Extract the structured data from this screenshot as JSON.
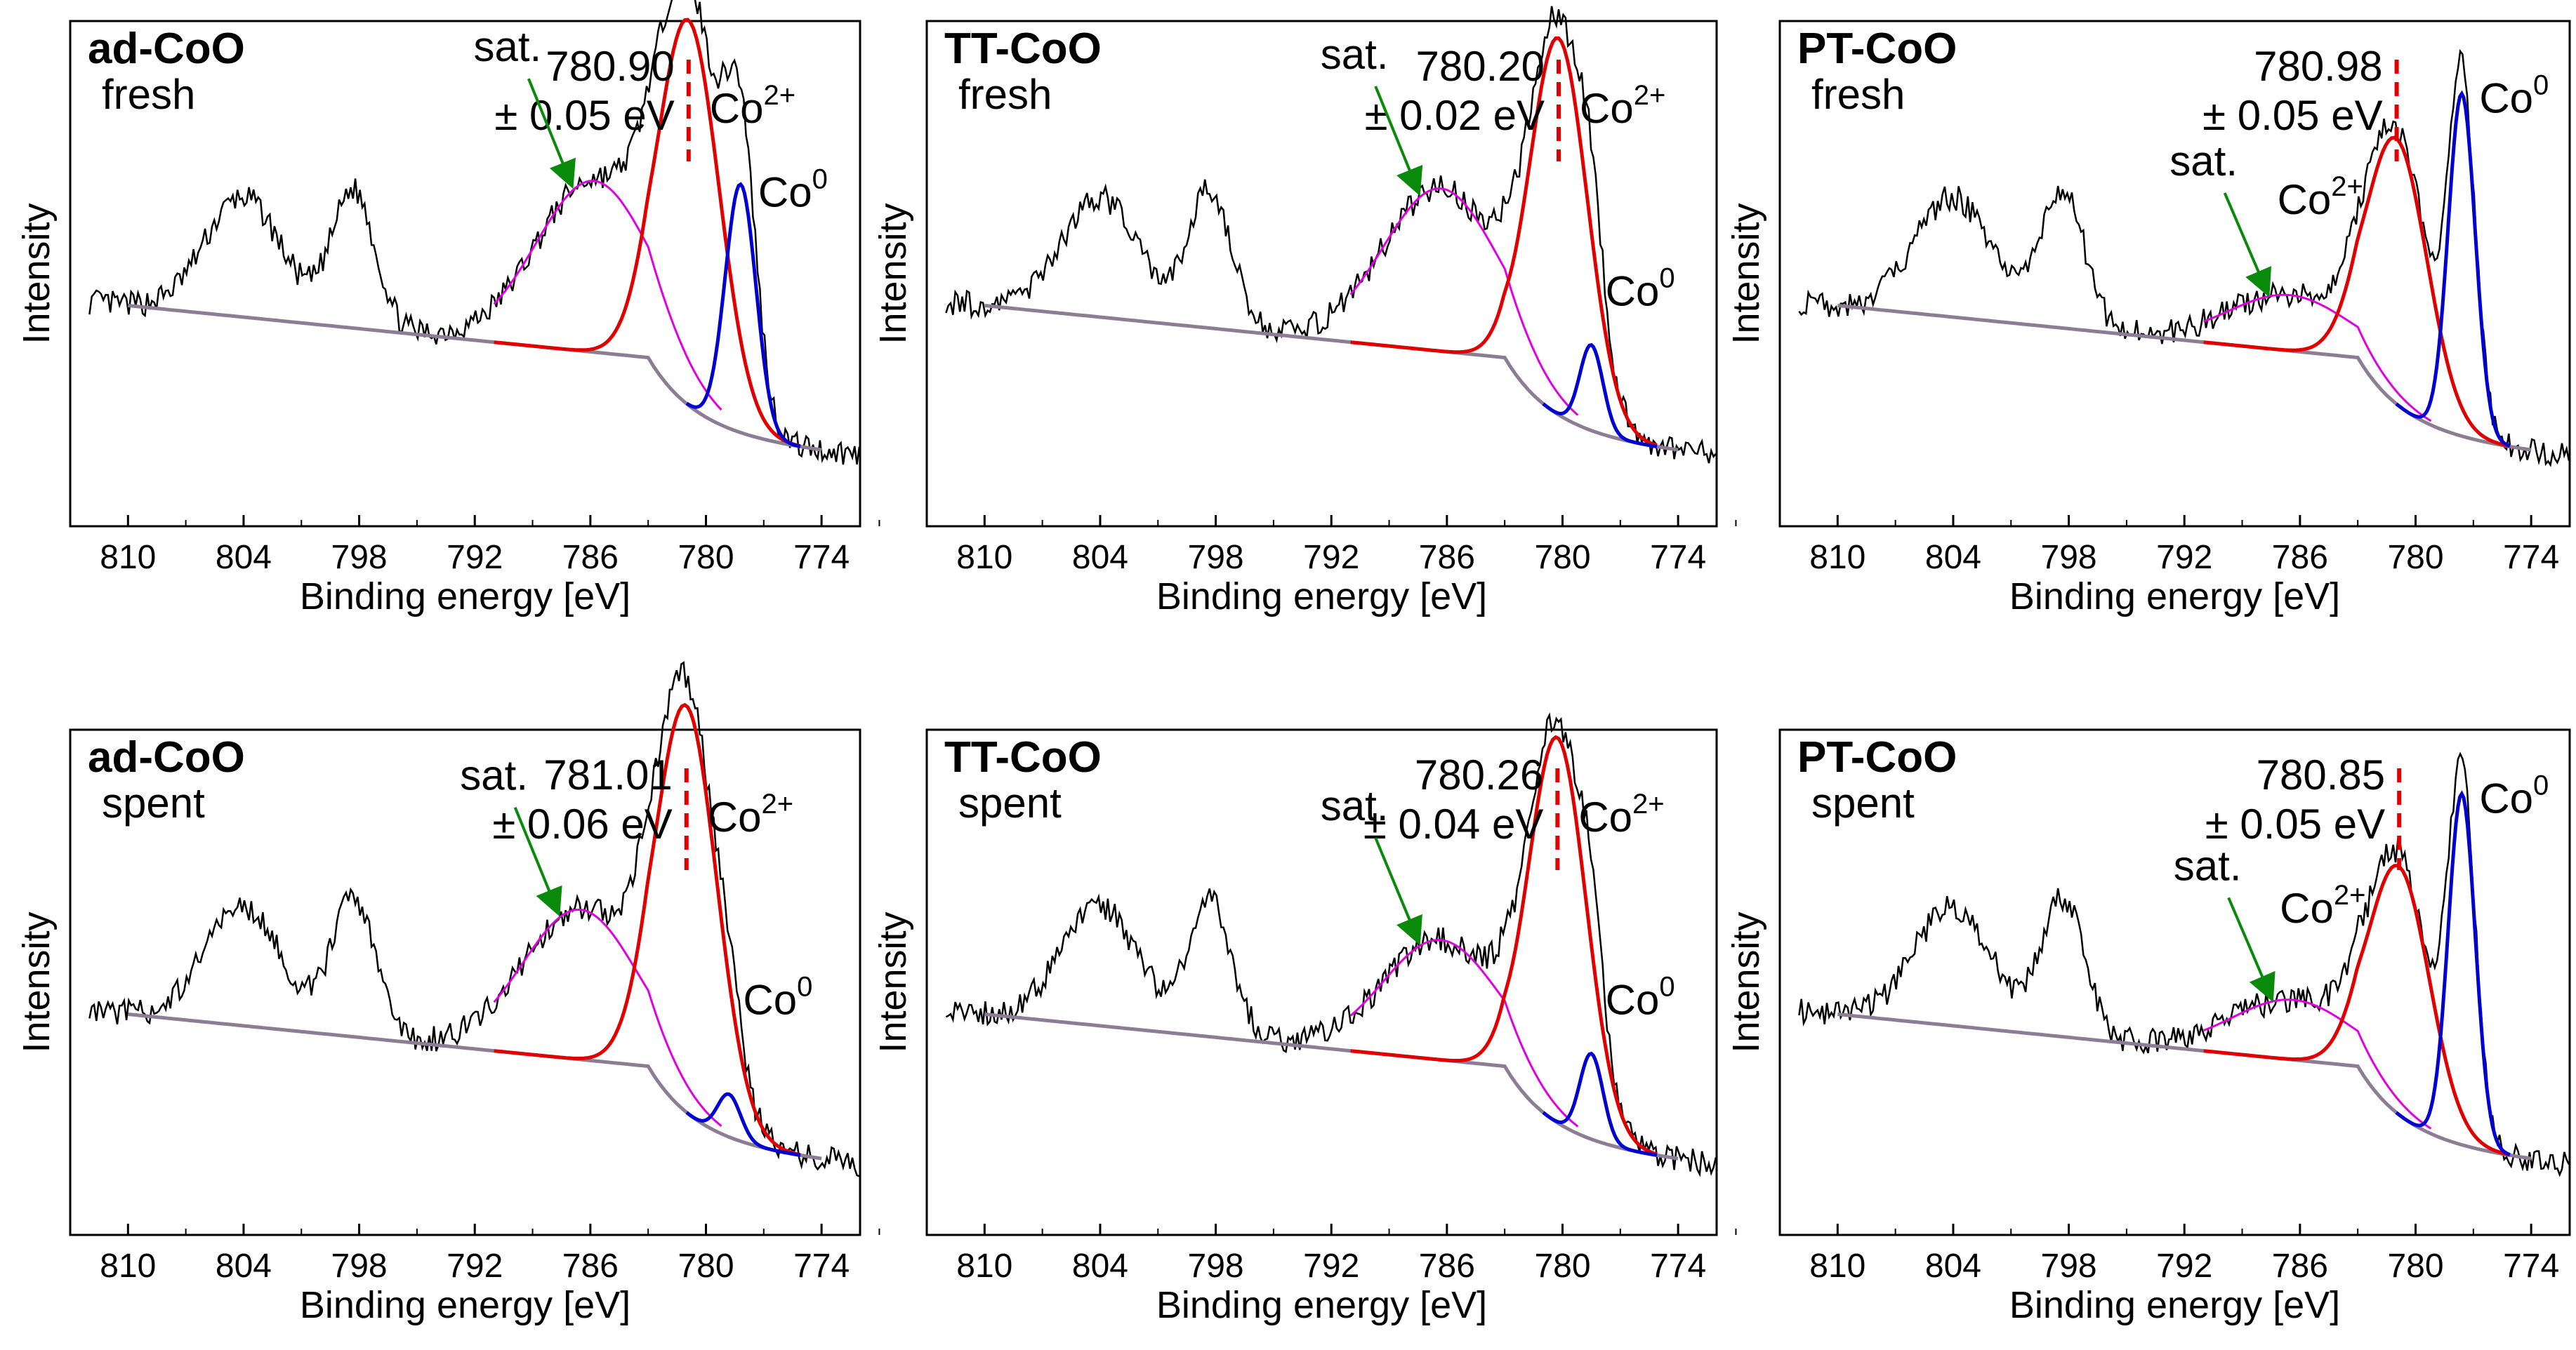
{
  "figure": {
    "y_axis_label": "Intensity",
    "x_axis_label": "Binding energy [eV]",
    "peak_labels": {
      "co2": "Co",
      "co2_sup": "2+",
      "co0": "Co",
      "co0_sup": "0",
      "sat": "sat."
    }
  },
  "chart_data": [
    {
      "type": "line",
      "title": "ad-CoO",
      "condition": "fresh",
      "peak_value": "780.90",
      "peak_uncertainty": "± 0.05 eV",
      "xlabel": "Binding energy [eV]",
      "ylabel": "Intensity",
      "xlim": [
        813,
        772
      ],
      "xticks": [
        "810",
        "804",
        "798",
        "792",
        "786",
        "780",
        "774"
      ],
      "components": {
        "co2_center": 780.9,
        "co2_height": 0.9,
        "co2_width": 1.6,
        "sat_center": 785.8,
        "sat_height": 0.4,
        "sat_width": 3.0,
        "co0_center": 778.2,
        "co0_height": 0.58,
        "co0_width": 0.8
      },
      "series": [
        {
          "name": "experimental",
          "color": "#000000"
        },
        {
          "name": "background",
          "color": "#8c7d95"
        },
        {
          "name": "Co2+",
          "color": "#e10000"
        },
        {
          "name": "satellite",
          "color": "#e000e0"
        },
        {
          "name": "Co0",
          "color": "#0000d0"
        }
      ]
    },
    {
      "type": "line",
      "title": "TT-CoO",
      "condition": "fresh",
      "peak_value": "780.20",
      "peak_uncertainty": "± 0.02 eV",
      "xlabel": "Binding energy [eV]",
      "ylabel": "Intensity",
      "xlim": [
        813,
        772
      ],
      "xticks": [
        "810",
        "804",
        "798",
        "792",
        "786",
        "780",
        "774"
      ],
      "components": {
        "co2_center": 780.2,
        "co2_height": 0.88,
        "co2_width": 1.5,
        "sat_center": 786.3,
        "sat_height": 0.38,
        "sat_width": 3.0,
        "co0_center": 778.5,
        "co0_height": 0.2,
        "co0_width": 0.6
      },
      "series": [
        {
          "name": "experimental",
          "color": "#000000"
        },
        {
          "name": "background",
          "color": "#8c7d95"
        },
        {
          "name": "Co2+",
          "color": "#e10000"
        },
        {
          "name": "satellite",
          "color": "#e000e0"
        },
        {
          "name": "Co0",
          "color": "#0000d0"
        }
      ]
    },
    {
      "type": "line",
      "title": "PT-CoO",
      "condition": "fresh",
      "peak_value": "780.98",
      "peak_uncertainty": "± 0.05 eV",
      "xlabel": "Binding energy [eV]",
      "ylabel": "Intensity",
      "xlim": [
        813,
        772
      ],
      "xticks": [
        "810",
        "804",
        "798",
        "792",
        "786",
        "780",
        "774"
      ],
      "components": {
        "co2_center": 780.98,
        "co2_height": 0.62,
        "co2_width": 1.6,
        "sat_center": 786.5,
        "sat_height": 0.13,
        "sat_width": 3.2,
        "co0_center": 777.6,
        "co0_height": 0.8,
        "co0_width": 0.7
      },
      "series": [
        {
          "name": "experimental",
          "color": "#000000"
        },
        {
          "name": "background",
          "color": "#8c7d95"
        },
        {
          "name": "Co2+",
          "color": "#e10000"
        },
        {
          "name": "satellite",
          "color": "#e000e0"
        },
        {
          "name": "Co0",
          "color": "#0000d0"
        }
      ]
    },
    {
      "type": "line",
      "title": "ad-CoO",
      "condition": "spent",
      "peak_value": "781.01",
      "peak_uncertainty": "± 0.06 eV",
      "xlabel": "Binding energy [eV]",
      "ylabel": "Intensity",
      "xlim": [
        813,
        772
      ],
      "xticks": [
        "810",
        "804",
        "798",
        "792",
        "786",
        "780",
        "774"
      ],
      "components": {
        "co2_center": 781.01,
        "co2_height": 0.95,
        "co2_width": 1.6,
        "sat_center": 786.5,
        "sat_height": 0.35,
        "sat_width": 3.0,
        "co0_center": 778.8,
        "co0_height": 0.1,
        "co0_width": 0.6
      },
      "series": [
        {
          "name": "experimental",
          "color": "#000000"
        },
        {
          "name": "background",
          "color": "#8c7d95"
        },
        {
          "name": "Co2+",
          "color": "#e10000"
        },
        {
          "name": "satellite",
          "color": "#e000e0"
        },
        {
          "name": "Co0",
          "color": "#0000d0"
        }
      ]
    },
    {
      "type": "line",
      "title": "TT-CoO",
      "condition": "spent",
      "peak_value": "780.26",
      "peak_uncertainty": "± 0.04 eV",
      "xlabel": "Binding energy [eV]",
      "ylabel": "Intensity",
      "xlim": [
        813,
        772
      ],
      "xticks": [
        "810",
        "804",
        "798",
        "792",
        "786",
        "780",
        "774"
      ],
      "components": {
        "co2_center": 780.26,
        "co2_height": 0.9,
        "co2_width": 1.5,
        "sat_center": 786.3,
        "sat_height": 0.28,
        "sat_width": 3.0,
        "co0_center": 778.5,
        "co0_height": 0.2,
        "co0_width": 0.6
      },
      "series": [
        {
          "name": "experimental",
          "color": "#000000"
        },
        {
          "name": "background",
          "color": "#8c7d95"
        },
        {
          "name": "Co2+",
          "color": "#e10000"
        },
        {
          "name": "satellite",
          "color": "#e000e0"
        },
        {
          "name": "Co0",
          "color": "#0000d0"
        }
      ]
    },
    {
      "type": "line",
      "title": "PT-CoO",
      "condition": "spent",
      "peak_value": "780.85",
      "peak_uncertainty": "± 0.05 eV",
      "xlabel": "Binding energy [eV]",
      "ylabel": "Intensity",
      "xlim": [
        813,
        772
      ],
      "xticks": [
        "810",
        "804",
        "798",
        "792",
        "786",
        "780",
        "774"
      ],
      "components": {
        "co2_center": 780.85,
        "co2_height": 0.58,
        "co2_width": 1.6,
        "sat_center": 786.3,
        "sat_height": 0.14,
        "sat_width": 3.2,
        "co0_center": 777.6,
        "co0_height": 0.82,
        "co0_width": 0.7
      },
      "series": [
        {
          "name": "experimental",
          "color": "#000000"
        },
        {
          "name": "background",
          "color": "#8c7d95"
        },
        {
          "name": "Co2+",
          "color": "#e10000"
        },
        {
          "name": "satellite",
          "color": "#e000e0"
        },
        {
          "name": "Co0",
          "color": "#0000d0"
        }
      ]
    }
  ]
}
